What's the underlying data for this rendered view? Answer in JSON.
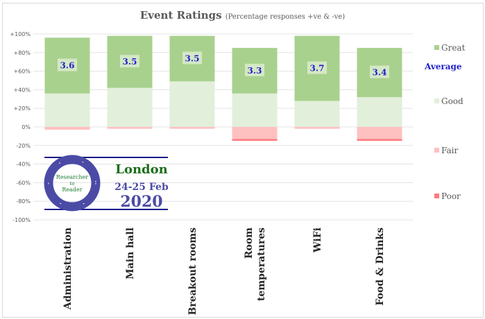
{
  "chart_data": {
    "type": "bar",
    "stacked": true,
    "title": "Event Ratings",
    "subtitle": "(Percentage responses +ve & -ve)",
    "categories": [
      "Administration",
      "Main hall",
      "Breakout rooms",
      "Room temperatures",
      "WiFi",
      "Food & Drinks"
    ],
    "series": [
      {
        "name": "Great",
        "color": "#a9d18e",
        "values": [
          60,
          56,
          49,
          49,
          70,
          53
        ]
      },
      {
        "name": "Good",
        "color": "#e2efda",
        "values": [
          36,
          42,
          49,
          36,
          28,
          32
        ]
      },
      {
        "name": "Fair",
        "color": "#ffc0c0",
        "values": [
          -3,
          -2,
          -2,
          -13,
          -2,
          -13
        ]
      },
      {
        "name": "Poor",
        "color": "#ff7c80",
        "values": [
          0,
          0,
          0,
          -2,
          0,
          -2
        ]
      }
    ],
    "averages": [
      "3.6",
      "3.5",
      "3.5",
      "3.3",
      "3.7",
      "3.4"
    ],
    "average_label": "Average",
    "ylim": [
      -100,
      100
    ],
    "yticks": [
      "+100%",
      "+80%",
      "+60%",
      "+40%",
      "+20%",
      "0%",
      "-20%",
      "-40%",
      "-60%",
      "-80%",
      "-100%"
    ],
    "grid": true,
    "legend": "right"
  },
  "logo": {
    "center_line1": "Researcher",
    "center_line2": "to",
    "center_line3": "Reader",
    "cycle": [
      "REVIEW",
      "PUBLISH",
      "DISTRIBUTE",
      "READ",
      "RESEARCH",
      "WRITE"
    ],
    "city": "London",
    "dates": "24-25 Feb",
    "year": "2020"
  }
}
